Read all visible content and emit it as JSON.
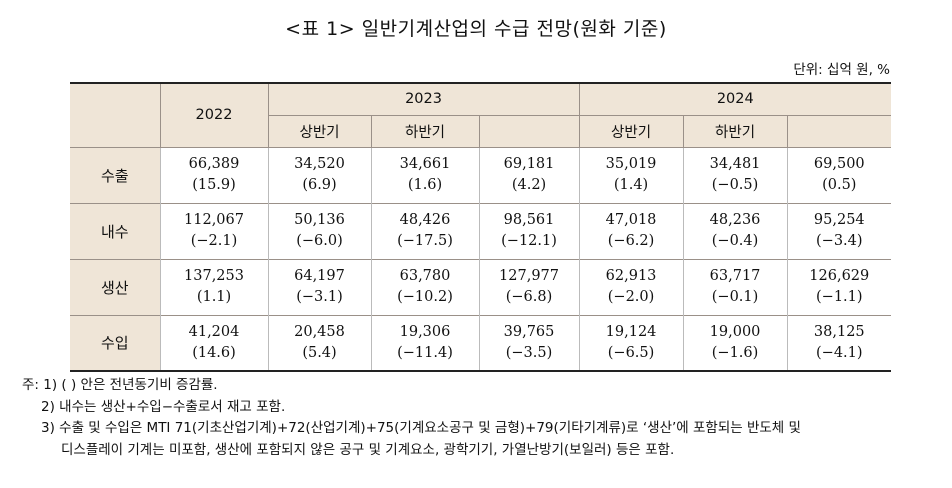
{
  "title": "<표 1> 일반기계산업의 수급 전망(원화 기준)",
  "unit": "단위: 십억 원, %",
  "header": {
    "y2022": "2022",
    "y2023": "2023",
    "y2024": "2024",
    "h1": "상반기",
    "h2": "하반기"
  },
  "rows": [
    {
      "label": "수출",
      "values": [
        "66,389",
        "34,520",
        "34,661",
        "69,181",
        "35,019",
        "34,481",
        "69,500"
      ],
      "rates": [
        "(15.9)",
        "(6.9)",
        "(1.6)",
        "(4.2)",
        "(1.4)",
        "(−0.5)",
        "(0.5)"
      ]
    },
    {
      "label": "내수",
      "values": [
        "112,067",
        "50,136",
        "48,426",
        "98,561",
        "47,018",
        "48,236",
        "95,254"
      ],
      "rates": [
        "(−2.1)",
        "(−6.0)",
        "(−17.5)",
        "(−12.1)",
        "(−6.2)",
        "(−0.4)",
        "(−3.4)"
      ]
    },
    {
      "label": "생산",
      "values": [
        "137,253",
        "64,197",
        "63,780",
        "127,977",
        "62,913",
        "63,717",
        "126,629"
      ],
      "rates": [
        "(1.1)",
        "(−3.1)",
        "(−10.2)",
        "(−6.8)",
        "(−2.0)",
        "(−0.1)",
        "(−1.1)"
      ]
    },
    {
      "label": "수입",
      "values": [
        "41,204",
        "20,458",
        "19,306",
        "39,765",
        "19,124",
        "19,000",
        "38,125"
      ],
      "rates": [
        "(14.6)",
        "(5.4)",
        "(−11.4)",
        "(−3.5)",
        "(−6.5)",
        "(−1.6)",
        "(−4.1)"
      ]
    }
  ],
  "notes": {
    "n1": "주: 1) (   ) 안은 전년동기비 증감률.",
    "n2": "2) 내수는 생산+수입−수출로서 재고 포함.",
    "n3a": "3) 수출 및 수입은 MTI 71(기초산업기계)+72(산업기계)+75(기계요소공구 및 금형)+79(기타기계류)로 ‘생산’에 포함되는 반도체 및",
    "n3b": "디스플레이 기계는 미포함, 생산에 포함되지 않은 공구 및 기계요소, 광학기기, 가열난방기(보일러) 등은 포함."
  }
}
